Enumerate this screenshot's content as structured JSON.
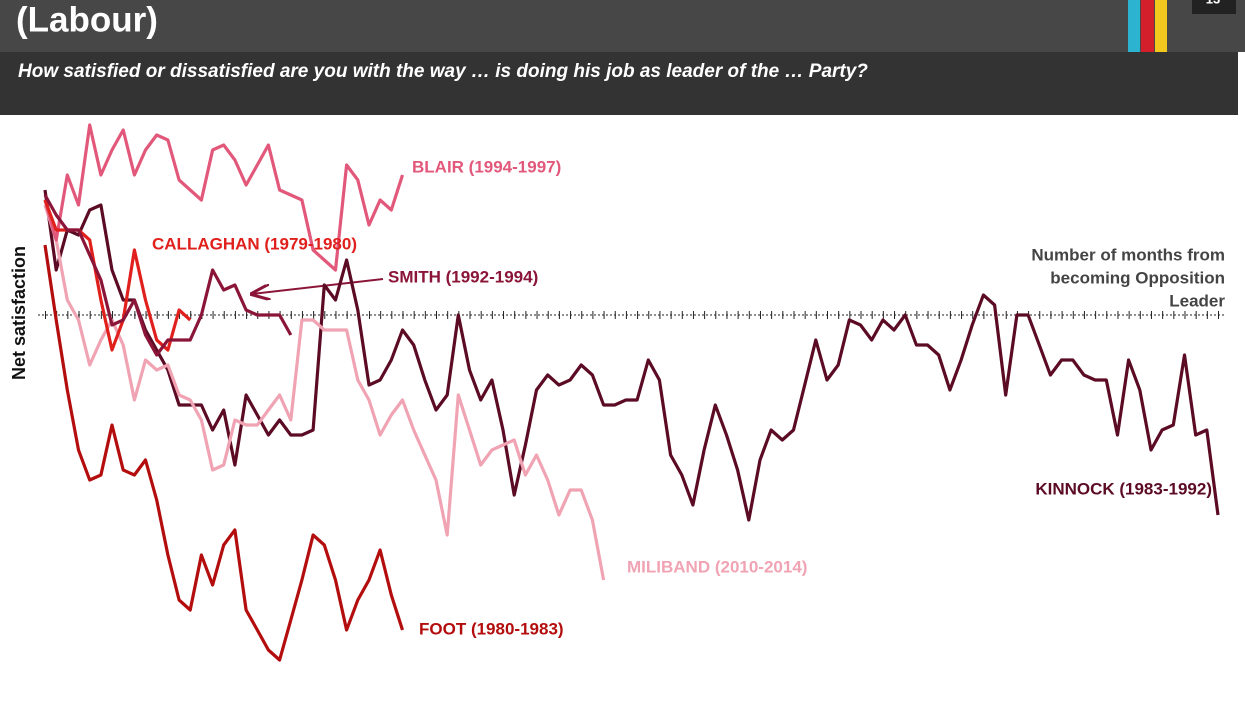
{
  "header": {
    "title": "(Labour)",
    "subtitle": "How satisfied or dissatisfied are you with the way … is doing his job as leader of the … Party?",
    "page_number": "13"
  },
  "chart_data": {
    "type": "line",
    "y_label": "Net satisfaction",
    "x_label": [
      "Number of months from",
      "becoming Opposition",
      "Leader"
    ],
    "xlim": [
      0,
      105
    ],
    "ylim": [
      -70,
      40
    ],
    "series": [
      {
        "name": "KINNOCK (1983-1992)",
        "color": "#5c0b24",
        "values": [
          25,
          9,
          17,
          16,
          21,
          22,
          9,
          3,
          3,
          -3,
          -7,
          -11,
          -18,
          -18,
          -18,
          -23,
          -19,
          -30,
          -16,
          -20,
          -24,
          -21,
          -24,
          -24,
          -23,
          6,
          3,
          11,
          1,
          -14,
          -13,
          -9,
          -3,
          -6,
          -13,
          -19,
          -16,
          0,
          -11,
          -17,
          -13,
          -23,
          -36,
          -26,
          -15,
          -12,
          -14,
          -13,
          -10,
          -12,
          -18,
          -18,
          -17,
          -17,
          -9,
          -13,
          -28,
          -32,
          -38,
          -27,
          -18,
          -24,
          -31,
          -41,
          -29,
          -23,
          -25,
          -23,
          -14,
          -5,
          -13,
          -10,
          -1,
          -2,
          -5,
          -1,
          -3,
          0,
          -6,
          -6,
          -8,
          -15,
          -9,
          -2,
          4,
          2,
          -16,
          0,
          0,
          -6,
          -12,
          -9,
          -9,
          -12,
          -13,
          -13,
          -24,
          -9,
          -15,
          -27,
          -23,
          -22,
          -8,
          -24,
          -23,
          -40
        ]
      },
      {
        "name": "MILIBAND (2010-2014)",
        "color": "#f0a3b3",
        "values": [
          22,
          15,
          3,
          -1,
          -10,
          -5,
          -1,
          -6,
          -17,
          -9,
          -11,
          -10,
          -16,
          -17,
          -21,
          -31,
          -30,
          -21,
          -22,
          -22,
          -19,
          -16,
          -21,
          -1,
          -1,
          -3,
          -3,
          -3,
          -13,
          -17,
          -24,
          -20,
          -17,
          -23,
          -28,
          -33,
          -44,
          -16,
          -23,
          -30,
          -27,
          -26,
          -25,
          -32,
          -28,
          -33,
          -40,
          -35,
          -35,
          -41,
          -53
        ]
      },
      {
        "name": "BLAIR (1994-1997)",
        "color": "#e2587a",
        "values": [
          23,
          15,
          28,
          22,
          38,
          28,
          33,
          37,
          28,
          33,
          36,
          35,
          27,
          25,
          23,
          33,
          34,
          31,
          26,
          30,
          34,
          25,
          24,
          23,
          13,
          11,
          9,
          30,
          27,
          18,
          23,
          21,
          28
        ]
      },
      {
        "name": "FOOT (1980-1983)",
        "color": "#b30d0d",
        "values": [
          14,
          -1,
          -15,
          -27,
          -33,
          -32,
          -22,
          -31,
          -32,
          -29,
          -37,
          -48,
          -57,
          -59,
          -48,
          -54,
          -46,
          -43,
          -59,
          -63,
          -67,
          -69,
          -61,
          -53,
          -44,
          -46,
          -53,
          -63,
          -57,
          -53,
          -47,
          -56,
          -63
        ]
      },
      {
        "name": "CALLAGHAN (1979-1980)",
        "color": "#e0201c",
        "values": [
          23,
          17,
          17,
          17,
          15,
          3,
          -7,
          -1,
          13,
          3,
          -5,
          -7,
          1,
          -1
        ]
      },
      {
        "name": "SMITH (1992-1994)",
        "color": "#8a1538",
        "values": [
          24,
          20,
          17,
          17,
          12,
          7,
          -2,
          -1,
          3,
          -4,
          -8,
          -5,
          -5,
          -5,
          0,
          9,
          5,
          6,
          1,
          0,
          0,
          0,
          -4
        ]
      }
    ]
  }
}
